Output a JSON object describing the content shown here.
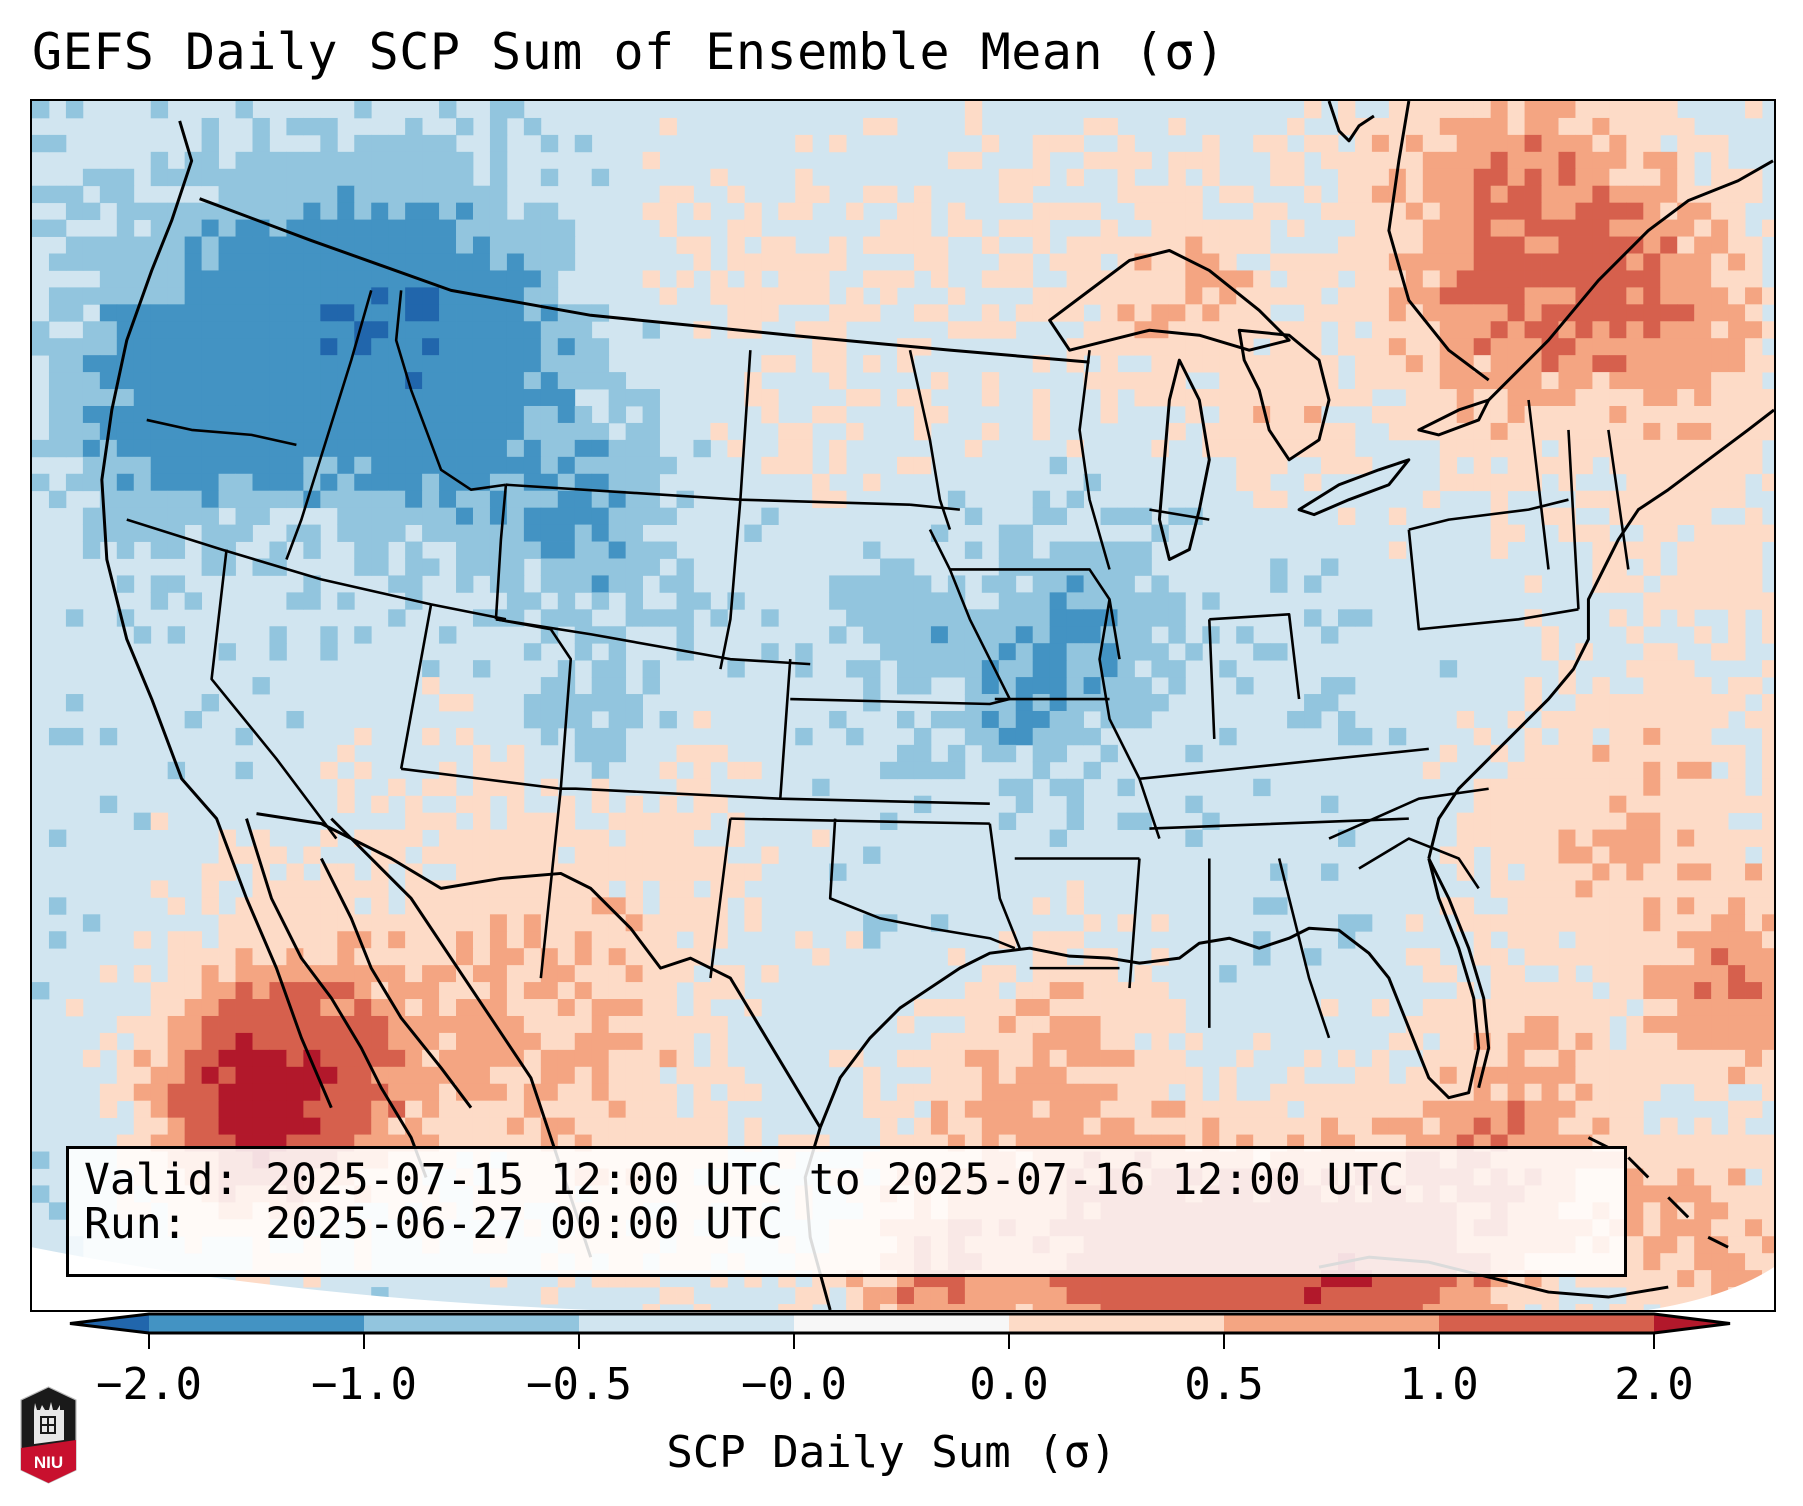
{
  "figure": {
    "title": "GEFS Daily SCP Sum of Ensemble Mean (σ)",
    "info": {
      "valid_label": "Valid:",
      "valid_value": "2025-07-15 12:00 UTC to 2025-07-16 12:00 UTC",
      "run_label": "Run:",
      "run_value": "2025-06-27 00:00 UTC"
    },
    "logo": {
      "text": "NIU",
      "icon": "niu-castle-shield-icon"
    }
  },
  "colorbar": {
    "label": "SCP Daily Sum (σ)",
    "ticks": [
      "−2.0",
      "−1.0",
      "−0.5",
      "−0.0",
      "0.0",
      "0.5",
      "1.0",
      "2.0"
    ],
    "bins": [
      {
        "range": "< -2.0",
        "color": "#2166ac",
        "extend": "min"
      },
      {
        "range": "-2.0 to -1.0",
        "color": "#4393c3"
      },
      {
        "range": "-1.0 to -0.5",
        "color": "#92c5de"
      },
      {
        "range": "-0.5 to -0.0",
        "color": "#d1e5f0"
      },
      {
        "range": "-0.0 to 0.0",
        "color": "#f7f7f7"
      },
      {
        "range": "0.0 to 0.5",
        "color": "#fddbc7"
      },
      {
        "range": "0.5 to 1.0",
        "color": "#f4a582"
      },
      {
        "range": "1.0 to 2.0",
        "color": "#d6604d"
      },
      {
        "range": "> 2.0",
        "color": "#b2182b",
        "extend": "max"
      }
    ]
  },
  "map": {
    "region": "Continental United States",
    "field": "SCP daily sum anomaly (σ)",
    "background_color": "#d1e5f0",
    "boundaries": [
      "coastlines",
      "country borders",
      "state borders"
    ]
  }
}
